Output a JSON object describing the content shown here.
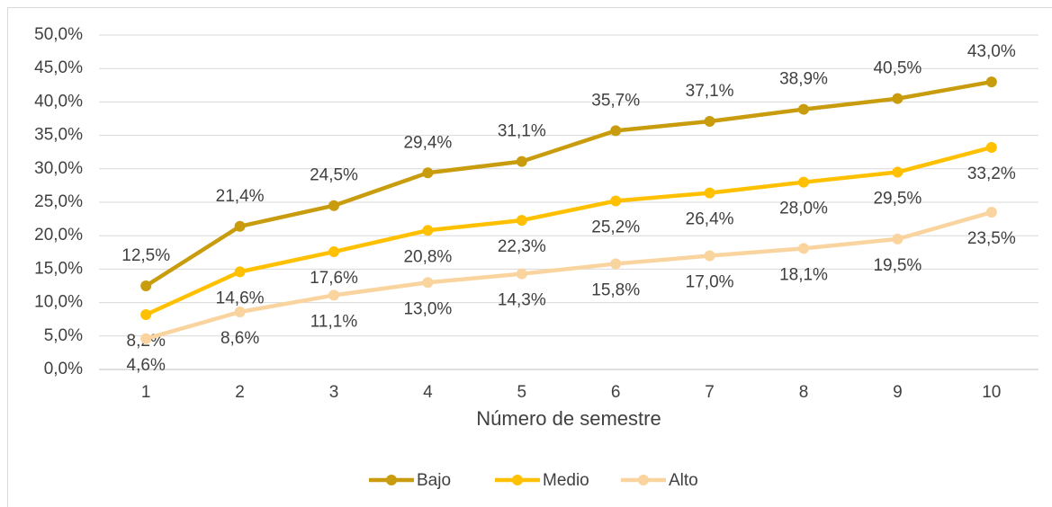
{
  "chart_data": {
    "type": "line",
    "x_label": "Número de semestre",
    "categories": [
      "1",
      "2",
      "3",
      "4",
      "5",
      "6",
      "7",
      "8",
      "9",
      "10"
    ],
    "series": [
      {
        "name": "Bajo",
        "color": "#c99c0e",
        "values": [
          12.5,
          21.4,
          24.5,
          29.4,
          31.1,
          35.7,
          37.1,
          38.9,
          40.5,
          43.0
        ],
        "value_labels": [
          "12,5%",
          "21,4%",
          "24,5%",
          "29,4%",
          "31,1%",
          "35,7%",
          "37,1%",
          "38,9%",
          "40,5%",
          "43,0%"
        ]
      },
      {
        "name": "Medio",
        "color": "#ffc000",
        "values": [
          8.2,
          14.6,
          17.6,
          20.8,
          22.3,
          25.2,
          26.4,
          28.0,
          29.5,
          33.2
        ],
        "value_labels": [
          "8,2%",
          "14,6%",
          "17,6%",
          "20,8%",
          "22,3%",
          "25,2%",
          "26,4%",
          "28,0%",
          "29,5%",
          "33,2%"
        ]
      },
      {
        "name": "Alto",
        "color": "#fad49f",
        "values": [
          4.6,
          8.6,
          11.1,
          13.0,
          14.3,
          15.8,
          17.0,
          18.1,
          19.5,
          23.5
        ],
        "value_labels": [
          "4,6%",
          "8,6%",
          "11,1%",
          "13,0%",
          "14,3%",
          "15,8%",
          "17,0%",
          "18,1%",
          "19,5%",
          "23,5%"
        ]
      }
    ],
    "ylim": [
      0,
      50
    ],
    "yticks": [
      {
        "value": 0,
        "label": "0,0%"
      },
      {
        "value": 5,
        "label": "5,0%"
      },
      {
        "value": 10,
        "label": "10,0%"
      },
      {
        "value": 15,
        "label": "15,0%"
      },
      {
        "value": 20,
        "label": "20,0%"
      },
      {
        "value": 25,
        "label": "25,0%"
      },
      {
        "value": 30,
        "label": "30,0%"
      },
      {
        "value": 35,
        "label": "35,0%"
      },
      {
        "value": 40,
        "label": "40,0%"
      },
      {
        "value": 45,
        "label": "45,0%"
      },
      {
        "value": 50,
        "label": "50,0%"
      }
    ],
    "grid": true,
    "legend": "bottom"
  }
}
